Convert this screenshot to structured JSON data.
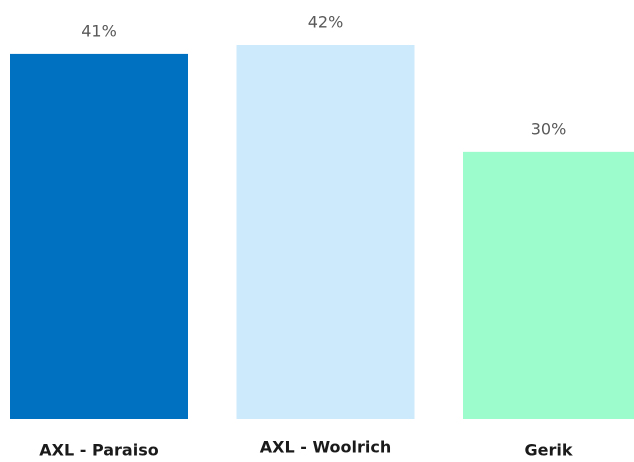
{
  "chart_data": {
    "type": "bar",
    "categories": [
      "AXL - Paraiso",
      "AXL - Woolrich",
      "Gerik"
    ],
    "values": [
      41,
      42,
      30
    ],
    "value_labels": [
      "41%",
      "42%",
      "30%"
    ],
    "colors": [
      "#0070c0",
      "#cdeafc",
      "#9dfccb"
    ]
  }
}
